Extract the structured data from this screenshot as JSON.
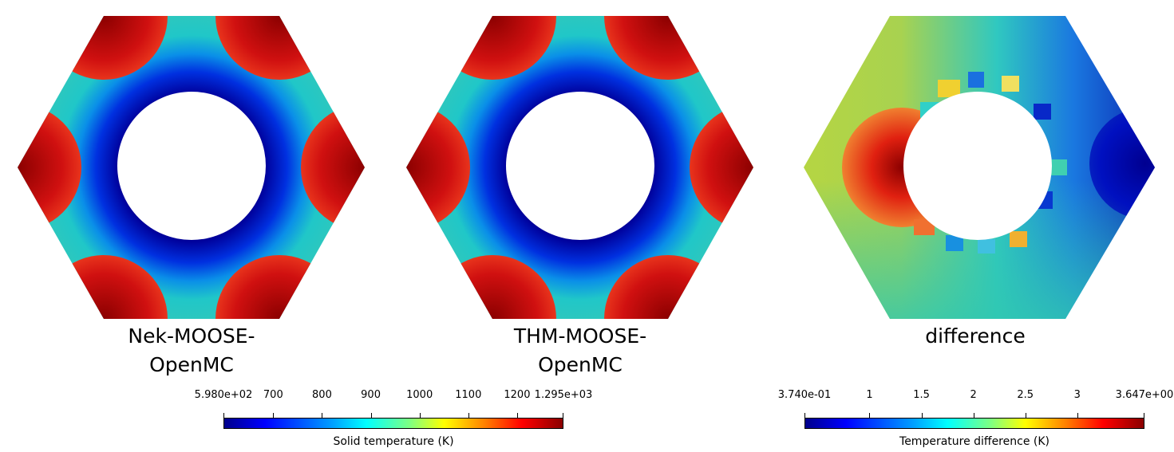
{
  "panels": [
    {
      "id": "nek",
      "caption_lines": [
        "Nek-MOOSE-",
        "OpenMC"
      ]
    },
    {
      "id": "thm",
      "caption_lines": [
        "THM-MOOSE-",
        "OpenMC"
      ]
    },
    {
      "id": "diff",
      "caption_lines": [
        "difference"
      ]
    }
  ],
  "colorbar_temperature": {
    "title": "Solid temperature (K)",
    "min": 598.0,
    "max": 1295.0,
    "ticks": [
      {
        "value": 598.0,
        "label": "5.980e+02"
      },
      {
        "value": 700,
        "label": "700"
      },
      {
        "value": 800,
        "label": "800"
      },
      {
        "value": 900,
        "label": "900"
      },
      {
        "value": 1000,
        "label": "1000"
      },
      {
        "value": 1100,
        "label": "1100"
      },
      {
        "value": 1200,
        "label": "1200"
      },
      {
        "value": 1295.0,
        "label": "1.295e+03"
      }
    ]
  },
  "colorbar_difference": {
    "title": "Temperature difference (K)",
    "min": 0.374,
    "max": 3.647,
    "ticks": [
      {
        "value": 0.374,
        "label": "3.740e-01"
      },
      {
        "value": 1,
        "label": "1"
      },
      {
        "value": 1.5,
        "label": "1.5"
      },
      {
        "value": 2,
        "label": "2"
      },
      {
        "value": 2.5,
        "label": "2.5"
      },
      {
        "value": 3,
        "label": "3"
      },
      {
        "value": 3.647,
        "label": "3.647e+00"
      }
    ]
  },
  "colormap": "jet"
}
